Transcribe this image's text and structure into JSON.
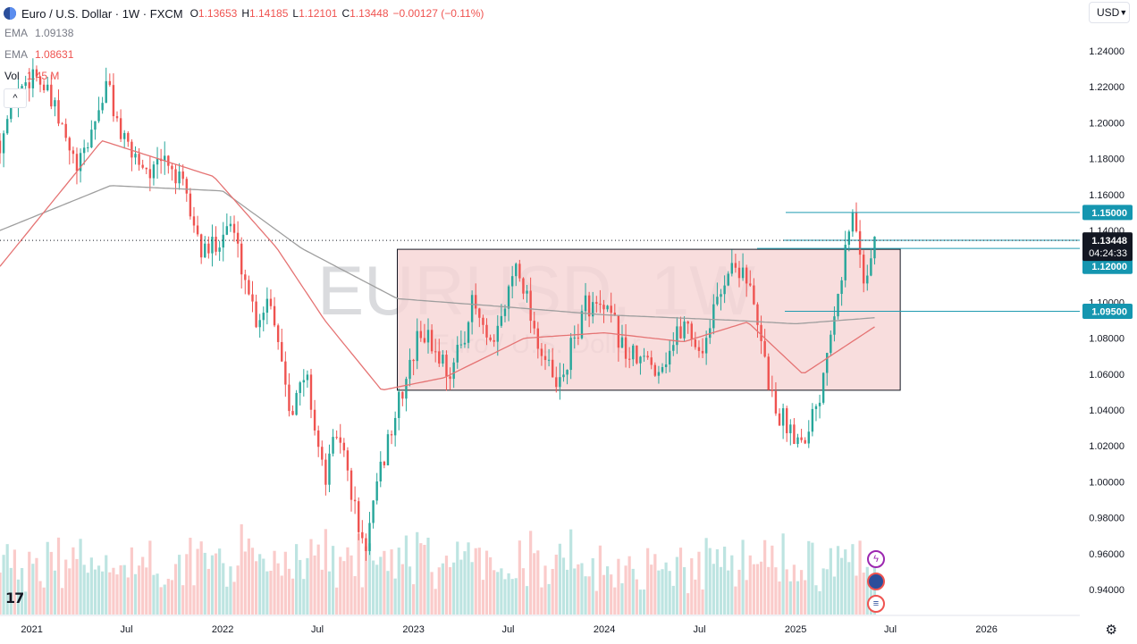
{
  "header": {
    "title": "Euro / U.S. Dollar · 1W · FXCM",
    "open_label": "O",
    "open": "1.13653",
    "high_label": "H",
    "high": "1.14185",
    "low_label": "L",
    "low": "1.12101",
    "close_label": "C",
    "close": "1.13448",
    "change": "−0.00127 (−0.11%)"
  },
  "indicators": {
    "ema1_name": "EMA",
    "ema1_value": "1.09138",
    "ema2_name": "EMA",
    "ema2_value": "1.08631",
    "vol_name": "Vol",
    "vol_value": "1.45 M"
  },
  "currency": "USD",
  "watermark": {
    "symbol": "EURUSD, 1W",
    "description": "Euro / U.S. Dollar"
  },
  "colors": {
    "up": "#26a69a",
    "down": "#ef5350",
    "ema_slow": "#9e9e9e",
    "ema_fast": "#e57373",
    "zone_fill": "#f6d4d4",
    "hline": "#1f9bb0",
    "label_bg": "#1596b0",
    "price_bg": "#131722"
  },
  "icons": [
    "tradingview-logo",
    "settings-gear-icon",
    "flash-icon",
    "eu-flag-icon",
    "us-flag-icon"
  ],
  "chart_data": {
    "type": "candlestick",
    "title": "Euro / U.S. Dollar",
    "interval": "1W",
    "ylim": [
      0.93,
      1.25
    ],
    "y_ticks": [
      "1.24000",
      "1.22000",
      "1.20000",
      "1.18000",
      "1.16000",
      "1.14000",
      "1.12000",
      "1.10000",
      "1.08000",
      "1.06000",
      "1.04000",
      "1.02000",
      "1.00000",
      "0.98000",
      "0.96000",
      "0.94000"
    ],
    "x_ticks": [
      "2021",
      "Jul",
      "2022",
      "Jul",
      "2023",
      "Jul",
      "2024",
      "Jul",
      "2025",
      "Jul",
      "2026"
    ],
    "x_range": [
      "2020-11-01",
      "2026-05-15"
    ],
    "series_anchors": [
      [
        "2020-11-01",
        1.19
      ],
      [
        "2020-12-01",
        1.215
      ],
      [
        "2021-01-06",
        1.23
      ],
      [
        "2021-02-15",
        1.205
      ],
      [
        "2021-03-30",
        1.172
      ],
      [
        "2021-05-25",
        1.222
      ],
      [
        "2021-06-25",
        1.188
      ],
      [
        "2021-08-20",
        1.172
      ],
      [
        "2021-09-15",
        1.18
      ],
      [
        "2021-10-20",
        1.161
      ],
      [
        "2021-11-25",
        1.125
      ],
      [
        "2022-01-15",
        1.145
      ],
      [
        "2022-03-07",
        1.09
      ],
      [
        "2022-04-01",
        1.105
      ],
      [
        "2022-05-12",
        1.04
      ],
      [
        "2022-06-10",
        1.06
      ],
      [
        "2022-07-14",
        1.0
      ],
      [
        "2022-08-10",
        1.03
      ],
      [
        "2022-09-28",
        0.96
      ],
      [
        "2022-11-10",
        1.02
      ],
      [
        "2023-01-15",
        1.085
      ],
      [
        "2023-03-15",
        1.06
      ],
      [
        "2023-04-25",
        1.1
      ],
      [
        "2023-05-31",
        1.07
      ],
      [
        "2023-07-18",
        1.125
      ],
      [
        "2023-08-25",
        1.08
      ],
      [
        "2023-10-03",
        1.05
      ],
      [
        "2023-11-28",
        1.1
      ],
      [
        "2024-01-15",
        1.09
      ],
      [
        "2024-02-14",
        1.07
      ],
      [
        "2024-04-16",
        1.064
      ],
      [
        "2024-06-05",
        1.09
      ],
      [
        "2024-07-02",
        1.071
      ],
      [
        "2024-08-23",
        1.118
      ],
      [
        "2024-09-25",
        1.12
      ],
      [
        "2024-11-22",
        1.04
      ],
      [
        "2025-01-13",
        1.023
      ],
      [
        "2025-02-15",
        1.048
      ],
      [
        "2025-03-10",
        1.09
      ],
      [
        "2025-04-21",
        1.15
      ],
      [
        "2025-05-12",
        1.112
      ],
      [
        "2025-06-01",
        1.134
      ]
    ],
    "ema_slow_anchors": [
      [
        "2020-11-01",
        1.14
      ],
      [
        "2021-06-01",
        1.165
      ],
      [
        "2022-01-01",
        1.162
      ],
      [
        "2022-06-01",
        1.13
      ],
      [
        "2022-12-01",
        1.102
      ],
      [
        "2023-06-01",
        1.098
      ],
      [
        "2024-01-01",
        1.093
      ],
      [
        "2024-09-01",
        1.09
      ],
      [
        "2025-01-01",
        1.088
      ],
      [
        "2025-06-01",
        1.0914
      ]
    ],
    "ema_fast_anchors": [
      [
        "2020-11-01",
        1.12
      ],
      [
        "2021-05-15",
        1.19
      ],
      [
        "2021-12-15",
        1.17
      ],
      [
        "2022-04-15",
        1.13
      ],
      [
        "2022-07-15",
        1.09
      ],
      [
        "2022-11-01",
        1.051
      ],
      [
        "2023-03-01",
        1.058
      ],
      [
        "2023-08-01",
        1.08
      ],
      [
        "2024-01-01",
        1.083
      ],
      [
        "2024-06-01",
        1.078
      ],
      [
        "2024-10-01",
        1.089
      ],
      [
        "2025-01-15",
        1.06
      ],
      [
        "2025-06-01",
        1.0863
      ]
    ],
    "range_box": {
      "y_low": 1.051,
      "y_high": 1.1295,
      "x_start": "2022-12-01",
      "x_end": "2025-07-20"
    },
    "horizontal_levels": [
      {
        "value": 1.15,
        "label": "1.15000"
      },
      {
        "value": 1.13,
        "label": "1.13000"
      },
      {
        "value": 1.12,
        "label": "1.12000"
      },
      {
        "value": 1.095,
        "label": "1.09500"
      }
    ],
    "last_price": {
      "value": 1.13448,
      "label": "1.13448",
      "countdown": "04:24:33"
    },
    "volume_unit": "M",
    "last_volume": "1.45 M"
  }
}
